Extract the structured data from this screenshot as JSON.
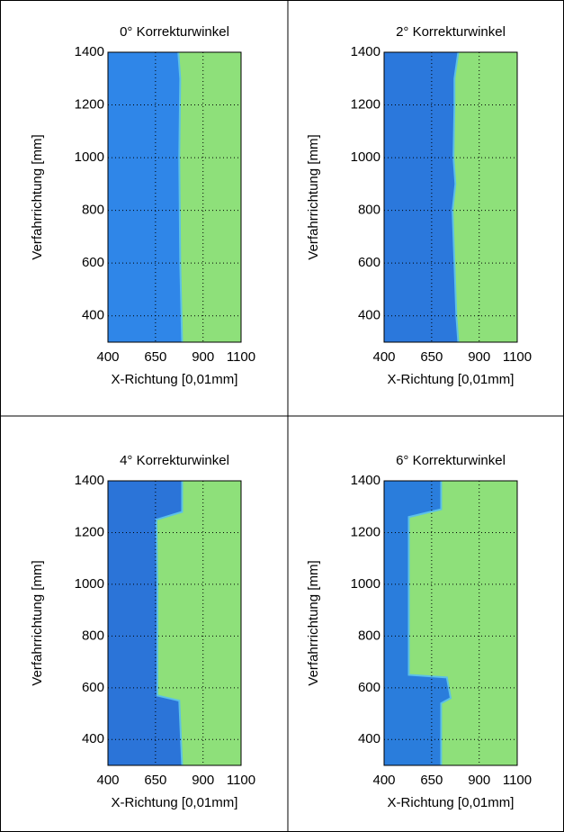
{
  "chart_data": [
    {
      "type": "heatmap",
      "title": "0° Korrekturwinkel",
      "xlabel": "X-Richtung [0,01mm]",
      "ylabel": "Verfahrrichtung [mm]",
      "xlim": [
        400,
        1100
      ],
      "ylim": [
        300,
        1400
      ],
      "xticks": [
        400,
        650,
        900,
        1100
      ],
      "yticks": [
        400,
        600,
        800,
        1000,
        1200,
        1400
      ],
      "grid": true,
      "colors": [
        "#2f86e8",
        "#8ee07a"
      ],
      "boundary": {
        "y": [
          300,
          600,
          1000,
          1300,
          1400
        ],
        "x": [
          790,
          780,
          775,
          780,
          770
        ]
      }
    },
    {
      "type": "heatmap",
      "title": "2° Korrekturwinkel",
      "xlabel": "X-Richtung [0,01mm]",
      "ylabel": "Verfahrrichtung [mm]",
      "xlim": [
        400,
        1100
      ],
      "ylim": [
        300,
        1400
      ],
      "xticks": [
        400,
        650,
        900,
        1100
      ],
      "yticks": [
        400,
        600,
        800,
        1000,
        1200,
        1400
      ],
      "grid": true,
      "colors": [
        "#2b78dc",
        "#8ee07a"
      ],
      "boundary": {
        "y": [
          300,
          400,
          800,
          900,
          1000,
          1200,
          1300,
          1350,
          1400
        ],
        "x": [
          790,
          780,
          760,
          775,
          765,
          770,
          770,
          780,
          790
        ]
      }
    },
    {
      "type": "heatmap",
      "title": "4° Korrekturwinkel",
      "xlabel": "X-Richtung [0,01mm]",
      "ylabel": "Verfahrrichtung [mm]",
      "xlim": [
        400,
        1100
      ],
      "ylim": [
        300,
        1400
      ],
      "xticks": [
        400,
        650,
        900,
        1100
      ],
      "yticks": [
        400,
        600,
        800,
        1000,
        1200,
        1400
      ],
      "grid": true,
      "colors": [
        "#2b74d8",
        "#8ee07a"
      ],
      "boundary": {
        "y": [
          300,
          550,
          570,
          1000,
          1250,
          1280,
          1400
        ],
        "x": [
          790,
          775,
          660,
          660,
          655,
          790,
          790
        ]
      }
    },
    {
      "type": "heatmap",
      "title": "6° Korrekturwinkel",
      "xlabel": "X-Richtung [0,01mm]",
      "ylabel": "Verfahrrichtung [mm]",
      "xlim": [
        400,
        1100
      ],
      "ylim": [
        300,
        1400
      ],
      "xticks": [
        400,
        650,
        900,
        1100
      ],
      "yticks": [
        400,
        600,
        800,
        1000,
        1200,
        1400
      ],
      "grid": true,
      "colors": [
        "#2a7ddc",
        "#8ee07a"
      ],
      "boundary": {
        "y": [
          300,
          540,
          560,
          640,
          650,
          1260,
          1290,
          1400
        ],
        "x": [
          700,
          700,
          750,
          730,
          530,
          530,
          700,
          700
        ]
      }
    }
  ]
}
